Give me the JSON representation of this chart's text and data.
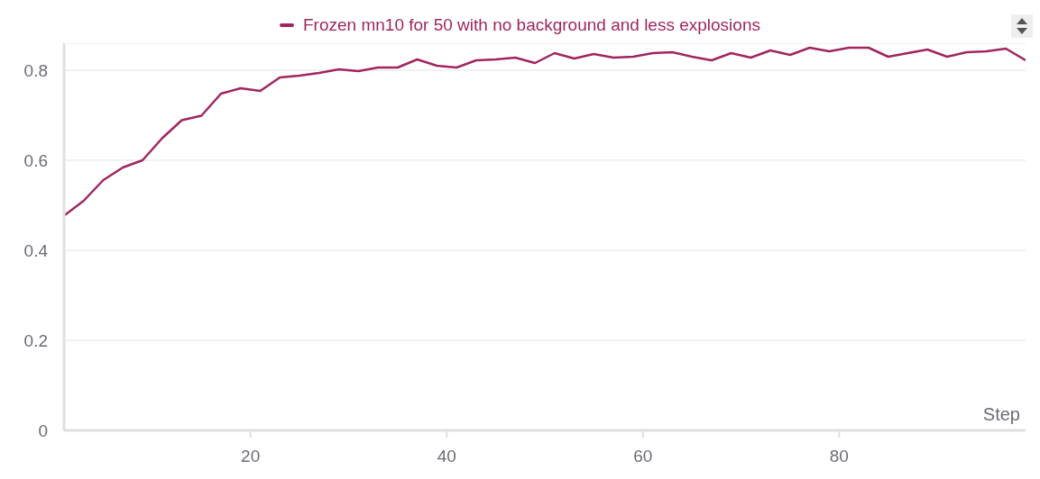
{
  "chart_data": {
    "type": "line",
    "xlabel": "Step",
    "x": [
      1,
      3,
      5,
      7,
      9,
      11,
      13,
      15,
      17,
      19,
      21,
      23,
      25,
      27,
      29,
      31,
      33,
      35,
      37,
      39,
      41,
      43,
      45,
      47,
      49,
      51,
      53,
      55,
      57,
      59,
      61,
      63,
      65,
      67,
      69,
      71,
      73,
      75,
      77,
      79,
      81,
      83,
      85,
      87,
      89,
      91,
      93,
      95,
      97,
      99
    ],
    "series": [
      {
        "name": "Frozen mn10 for 50 with no background and less explosions",
        "color": "#a0265f",
        "values": [
          0.477,
          0.51,
          0.556,
          0.584,
          0.6,
          0.649,
          0.689,
          0.699,
          0.748,
          0.76,
          0.754,
          0.784,
          0.788,
          0.794,
          0.802,
          0.798,
          0.806,
          0.806,
          0.824,
          0.81,
          0.806,
          0.822,
          0.824,
          0.828,
          0.816,
          0.838,
          0.826,
          0.836,
          0.828,
          0.83,
          0.838,
          0.84,
          0.83,
          0.822,
          0.838,
          0.828,
          0.844,
          0.834,
          0.85,
          0.842,
          0.85,
          0.85,
          0.83,
          0.838,
          0.846,
          0.83,
          0.84,
          0.842,
          0.848,
          0.822
        ]
      }
    ],
    "xlim": [
      1,
      99
    ],
    "xticks": [
      20,
      40,
      60,
      80
    ],
    "ylim": [
      0,
      0.86
    ],
    "yticks": [
      0,
      0.2,
      0.4,
      0.6,
      0.8
    ],
    "grid": "y",
    "legend": "top",
    "marker": "none",
    "line_style": "solid"
  }
}
